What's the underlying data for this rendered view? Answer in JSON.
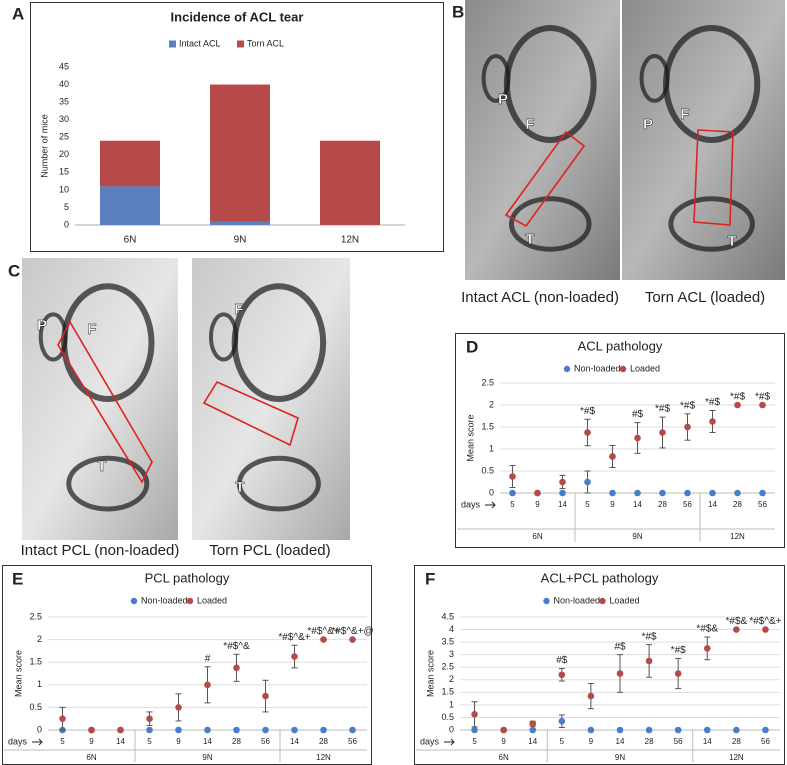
{
  "chart_data": [
    {
      "type": "bar",
      "label": "A",
      "title": "Incidence of ACL tear",
      "y_label": "Number of mice",
      "stacked": true,
      "categories": [
        "6N",
        "9N",
        "12N"
      ],
      "series": [
        {
          "name": "Intact ACL",
          "color": "#5b7fbf",
          "values": [
            11,
            1,
            0
          ]
        },
        {
          "name": "Torn ACL",
          "color": "#b54a48",
          "values": [
            13,
            39,
            24
          ]
        }
      ],
      "ylim": [
        0,
        45
      ],
      "yticks": [
        0,
        5,
        10,
        15,
        20,
        25,
        30,
        35,
        40,
        45
      ],
      "grid": false,
      "legend": "top"
    },
    {
      "type": "scatter",
      "label": "D",
      "title": "ACL pathology",
      "y_label": "Mean score",
      "x_label": "days",
      "groups": [
        {
          "name": "6N",
          "categories": [
            "5",
            "9",
            "14"
          ]
        },
        {
          "name": "9N",
          "categories": [
            "5",
            "9",
            "14",
            "28",
            "56"
          ]
        },
        {
          "name": "12N",
          "categories": [
            "14",
            "28",
            "56"
          ]
        }
      ],
      "series": [
        {
          "name": "Non-loaded",
          "color": "#4a7cc8",
          "values": [
            0,
            0,
            0,
            0.25,
            0,
            0,
            0,
            0,
            0,
            0,
            0
          ],
          "errors": [
            0,
            0,
            0,
            0.25,
            0,
            0,
            0,
            0,
            0,
            0,
            0
          ]
        },
        {
          "name": "Loaded",
          "color": "#b54a48",
          "values": [
            0.375,
            0,
            0.25,
            1.375,
            0.83,
            1.25,
            1.375,
            1.5,
            1.625,
            2,
            2
          ],
          "errors": [
            0.25,
            0,
            0.15,
            0.3,
            0.25,
            0.35,
            0.35,
            0.3,
            0.25,
            0,
            0
          ],
          "annotations": [
            null,
            null,
            null,
            "*#$",
            null,
            "#$",
            "*#$",
            "*#$",
            "*#$",
            "*#$",
            "*#$"
          ]
        }
      ],
      "ylim": [
        0,
        2.5
      ],
      "yticks": [
        0,
        0.5,
        1,
        1.5,
        2,
        2.5
      ],
      "grid": true,
      "legend": "top"
    },
    {
      "type": "scatter",
      "label": "E",
      "title": "PCL pathology",
      "y_label": "Mean score",
      "x_label": "days",
      "groups": [
        {
          "name": "6N",
          "categories": [
            "5",
            "9",
            "14"
          ]
        },
        {
          "name": "9N",
          "categories": [
            "5",
            "9",
            "14",
            "28",
            "56"
          ]
        },
        {
          "name": "12N",
          "categories": [
            "14",
            "28",
            "56"
          ]
        }
      ],
      "series": [
        {
          "name": "Non-loaded",
          "color": "#4a7cc8",
          "values": [
            0,
            0,
            0,
            0,
            0,
            0,
            0,
            0,
            0,
            0,
            0
          ],
          "errors": [
            0,
            0,
            0,
            0,
            0,
            0,
            0,
            0,
            0,
            0,
            0
          ]
        },
        {
          "name": "Loaded",
          "color": "#b54a48",
          "values": [
            0.25,
            0,
            0,
            0.25,
            0.5,
            1,
            1.375,
            0.75,
            1.625,
            2,
            2
          ],
          "errors": [
            0.25,
            0,
            0,
            0.15,
            0.3,
            0.4,
            0.3,
            0.35,
            0.25,
            0,
            0
          ],
          "annotations": [
            null,
            null,
            null,
            null,
            null,
            "#",
            "*#$^&",
            null,
            "*#$^&+",
            "*#$^&+",
            "*#$^&+@"
          ]
        }
      ],
      "ylim": [
        0,
        2.5
      ],
      "yticks": [
        0,
        0.5,
        1,
        1.5,
        2,
        2.5
      ],
      "grid": true,
      "legend": "top"
    },
    {
      "type": "scatter",
      "label": "F",
      "title": "ACL+PCL pathology",
      "y_label": "Mean score",
      "x_label": "days",
      "groups": [
        {
          "name": "6N",
          "categories": [
            "5",
            "9",
            "14"
          ]
        },
        {
          "name": "9N",
          "categories": [
            "5",
            "9",
            "14",
            "28",
            "56"
          ]
        },
        {
          "name": "12N",
          "categories": [
            "14",
            "28",
            "56"
          ]
        }
      ],
      "series": [
        {
          "name": "Non-loaded",
          "color": "#4a7cc8",
          "values": [
            0,
            0,
            0,
            0.35,
            0,
            0,
            0,
            0,
            0,
            0,
            0
          ],
          "errors": [
            0,
            0,
            0,
            0.25,
            0,
            0,
            0,
            0,
            0,
            0,
            0
          ]
        },
        {
          "name": "Loaded",
          "color": "#b54a48",
          "values": [
            0.625,
            0,
            0.25,
            2.2,
            1.35,
            2.25,
            2.75,
            2.25,
            3.25,
            4,
            4
          ],
          "errors": [
            0.5,
            0,
            0.1,
            0.25,
            0.5,
            0.75,
            0.65,
            0.6,
            0.45,
            0,
            0
          ],
          "annotations": [
            null,
            null,
            null,
            "#$",
            null,
            "#$",
            "*#$",
            "*#$",
            "*#$&",
            "*#$&",
            "*#$^&+"
          ]
        }
      ],
      "ylim": [
        0,
        4.5
      ],
      "yticks": [
        0,
        0.5,
        1,
        1.5,
        2,
        2.5,
        3,
        3.5,
        4,
        4.5
      ],
      "grid": true,
      "legend": "top"
    }
  ],
  "images": [
    {
      "label": "B",
      "panels": [
        {
          "caption": "Intact ACL (non-loaded)",
          "letters": [
            "P",
            "F",
            "T"
          ]
        },
        {
          "caption": "Torn ACL (loaded)",
          "letters": [
            "P",
            "F",
            "T"
          ]
        }
      ]
    },
    {
      "label": "C",
      "panels": [
        {
          "caption": "Intact PCL (non-loaded)",
          "letters": [
            "P",
            "F",
            "T"
          ]
        },
        {
          "caption": "Torn PCL (loaded)",
          "letters": [
            "F",
            "T"
          ]
        }
      ]
    }
  ]
}
